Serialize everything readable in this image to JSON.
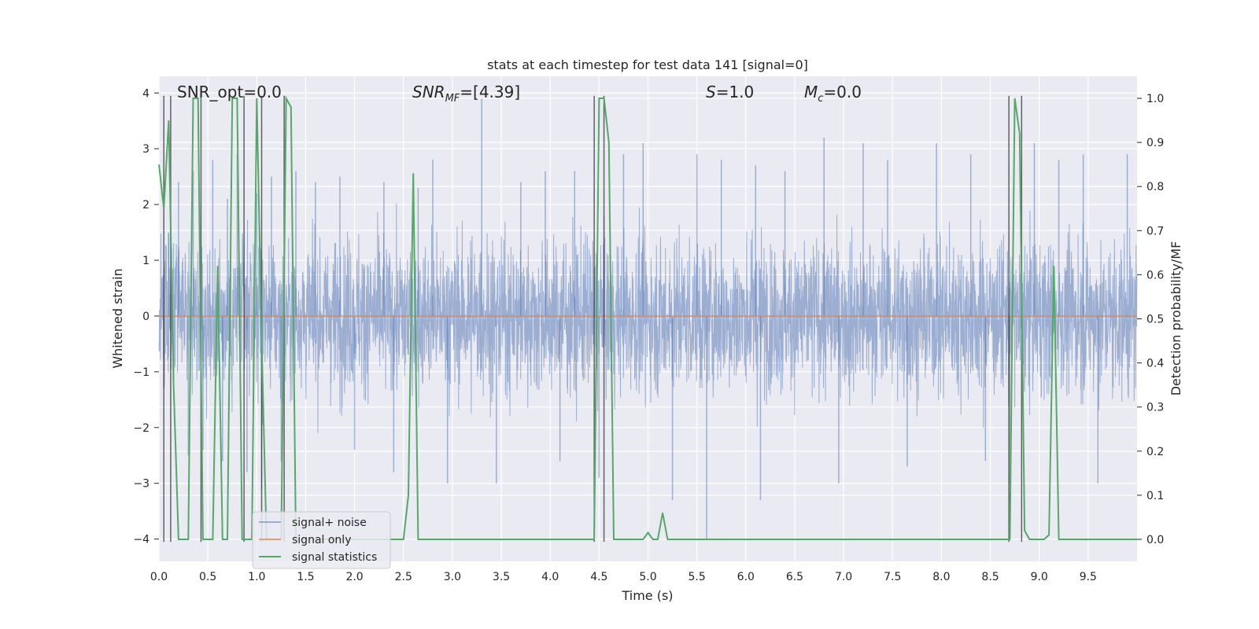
{
  "chart_data": {
    "type": "line",
    "title": "stats at each timestep for test data 141 [signal=0]",
    "xlabel": "Time (s)",
    "ylabel": "Whitened strain",
    "y2label": "Detection probability/MF",
    "xlim": [
      0,
      10
    ],
    "ylim": [
      -4.4,
      4.3
    ],
    "y2lim": [
      -0.05,
      1.05
    ],
    "xticks": [
      "0.0",
      "0.5",
      "1.0",
      "1.5",
      "2.0",
      "2.5",
      "3.0",
      "3.5",
      "4.0",
      "4.5",
      "5.0",
      "5.5",
      "6.0",
      "6.5",
      "7.0",
      "7.5",
      "8.0",
      "8.5",
      "9.0",
      "9.5"
    ],
    "yticks": [
      "4",
      "3",
      "2",
      "1",
      "0",
      "−1",
      "−2",
      "−3",
      "−4"
    ],
    "y2ticks": [
      "1.0",
      "0.9",
      "0.8",
      "0.7",
      "0.6",
      "0.5",
      "0.4",
      "0.3",
      "0.2",
      "0.1",
      "0.0"
    ],
    "grid": true,
    "legend_position": "bottom-left",
    "annotations": {
      "snr_opt": "SNR_opt=0.0",
      "snr_mf_main": "SNR",
      "snr_mf_sub": "MF",
      "snr_mf_value": "=[4.39]",
      "s_main": "S",
      "s_value": "=1.0",
      "mc_main": "M",
      "mc_sub": "c",
      "mc_value": "=0.0"
    },
    "series": [
      {
        "name": "signal+ noise",
        "axis": "left",
        "color": "#4c72b0",
        "description_level": "noise band roughly ±1.5 with spikes to about ±3.5, sampled densely from 0 to 10 s",
        "envelope_peaks": [
          [
            0.05,
            -1.3
          ],
          [
            0.1,
            1.5
          ],
          [
            0.2,
            2.4
          ],
          [
            0.3,
            -2.5
          ],
          [
            0.35,
            2.6
          ],
          [
            0.45,
            -2.4
          ],
          [
            0.55,
            2.8
          ],
          [
            0.65,
            -2.6
          ],
          [
            0.7,
            2.1
          ],
          [
            0.8,
            2.9
          ],
          [
            0.9,
            -2.8
          ],
          [
            1.0,
            2.2
          ],
          [
            1.05,
            -3.1
          ],
          [
            1.15,
            2.5
          ],
          [
            1.25,
            -2.6
          ],
          [
            1.4,
            2.6
          ],
          [
            1.6,
            2.4
          ],
          [
            1.85,
            2.5
          ],
          [
            2.0,
            -2.4
          ],
          [
            2.3,
            2.4
          ],
          [
            2.4,
            -2.8
          ],
          [
            2.65,
            2.3
          ],
          [
            2.8,
            2.8
          ],
          [
            2.95,
            -3.0
          ],
          [
            3.3,
            3.9
          ],
          [
            3.45,
            -3.0
          ],
          [
            3.7,
            2.4
          ],
          [
            3.95,
            2.6
          ],
          [
            4.1,
            -2.6
          ],
          [
            4.25,
            2.6
          ],
          [
            4.5,
            -2.9
          ],
          [
            4.75,
            2.9
          ],
          [
            4.95,
            3.1
          ],
          [
            5.25,
            -3.3
          ],
          [
            5.5,
            2.9
          ],
          [
            5.75,
            2.8
          ],
          [
            5.6,
            -4.0
          ],
          [
            6.1,
            2.7
          ],
          [
            6.15,
            -3.3
          ],
          [
            6.4,
            2.6
          ],
          [
            6.8,
            3.2
          ],
          [
            6.95,
            -3.0
          ],
          [
            7.2,
            3.1
          ],
          [
            7.45,
            2.8
          ],
          [
            7.65,
            -2.7
          ],
          [
            7.95,
            3.1
          ],
          [
            8.3,
            2.9
          ],
          [
            8.45,
            -2.6
          ],
          [
            8.7,
            -3.0
          ],
          [
            8.95,
            3.1
          ],
          [
            9.2,
            2.8
          ],
          [
            9.45,
            2.9
          ],
          [
            9.6,
            -3.0
          ],
          [
            9.9,
            2.9
          ]
        ]
      },
      {
        "name": "signal only",
        "axis": "left",
        "color": "#dd8452",
        "x": [
          0,
          10
        ],
        "y": [
          0,
          0
        ]
      },
      {
        "name": "signal statistics",
        "axis": "right",
        "color": "#55a868",
        "x": [
          0.0,
          0.05,
          0.1,
          0.15,
          0.2,
          0.25,
          0.3,
          0.35,
          0.4,
          0.45,
          0.5,
          0.55,
          0.6,
          0.65,
          0.7,
          0.75,
          0.8,
          0.85,
          0.9,
          0.95,
          1.0,
          1.05,
          1.1,
          1.15,
          1.2,
          1.25,
          1.3,
          1.35,
          1.4,
          1.45,
          2.5,
          2.55,
          2.6,
          2.65,
          2.7,
          4.45,
          4.5,
          4.55,
          4.6,
          4.65,
          4.7,
          4.95,
          5.0,
          5.05,
          5.1,
          5.15,
          5.2,
          5.25,
          8.7,
          8.75,
          8.8,
          8.85,
          8.9,
          8.95,
          9.0,
          9.05,
          9.1,
          9.15,
          9.2,
          9.25,
          9.3,
          10.0
        ],
        "y": [
          0.85,
          0.75,
          0.95,
          0.35,
          0.0,
          0.0,
          0.0,
          1.0,
          1.0,
          0.0,
          0.0,
          0.0,
          0.62,
          0.0,
          0.0,
          1.0,
          1.0,
          0.0,
          0.0,
          0.0,
          1.0,
          0.45,
          0.0,
          0.0,
          0.0,
          0.0,
          1.0,
          0.98,
          0.0,
          0.0,
          0.0,
          0.1,
          0.83,
          0.0,
          0.0,
          0.0,
          1.0,
          1.0,
          0.9,
          0.0,
          0.0,
          0.0,
          0.015,
          0.0,
          0.0,
          0.06,
          0.0,
          0.0,
          0.0,
          1.0,
          0.92,
          0.02,
          0.0,
          0.0,
          0.0,
          0.0,
          0.01,
          0.62,
          0.0,
          0.0,
          0.0,
          0.0
        ]
      }
    ],
    "vlines": [
      0.05,
      0.12,
      0.43,
      0.87,
      1.05,
      1.28,
      4.45,
      4.55,
      8.69,
      8.82
    ]
  }
}
